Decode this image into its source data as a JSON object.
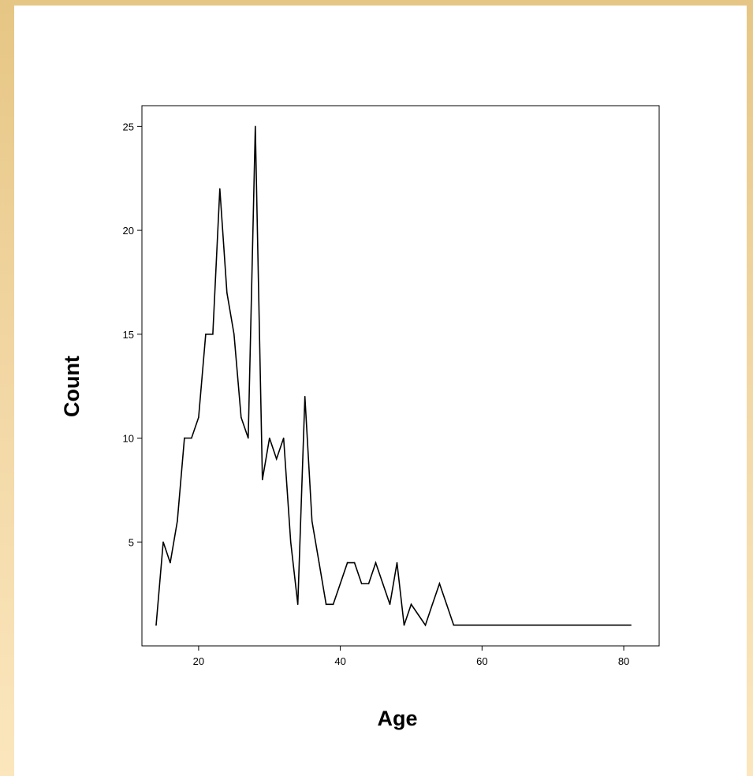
{
  "chart_data": {
    "type": "line",
    "xlabel": "Age",
    "ylabel": "Count",
    "xlim": [
      12,
      85
    ],
    "ylim": [
      0,
      26
    ],
    "x_ticks": [
      20,
      40,
      60,
      80
    ],
    "y_ticks": [
      5,
      10,
      15,
      20,
      25
    ],
    "grid": false,
    "line_color": "#000000",
    "series": [
      {
        "x": [
          14,
          15,
          16,
          17,
          18,
          19,
          20,
          21,
          22,
          23,
          24,
          25,
          26,
          27,
          28,
          29,
          30,
          31,
          32,
          33,
          34,
          35,
          36,
          37,
          38,
          39,
          40,
          41,
          42,
          43,
          44,
          45,
          46,
          47,
          48,
          49,
          50,
          51,
          52,
          53,
          54,
          55,
          56,
          81
        ],
        "y": [
          1,
          5,
          4,
          6,
          10,
          10,
          11,
          15,
          15,
          22,
          17,
          15,
          11,
          10,
          25,
          8,
          10,
          9,
          10,
          5,
          2,
          12,
          6,
          4,
          2,
          2,
          3,
          4,
          4,
          3,
          3,
          4,
          3,
          2,
          4,
          1,
          2,
          1.5,
          1,
          2,
          3,
          2,
          1,
          1
        ]
      }
    ]
  },
  "colors": {
    "page_background_top": "#e6c684",
    "page_background_bottom": "#fbe6bd",
    "panel": "#ffffff",
    "axis": "#000000"
  }
}
